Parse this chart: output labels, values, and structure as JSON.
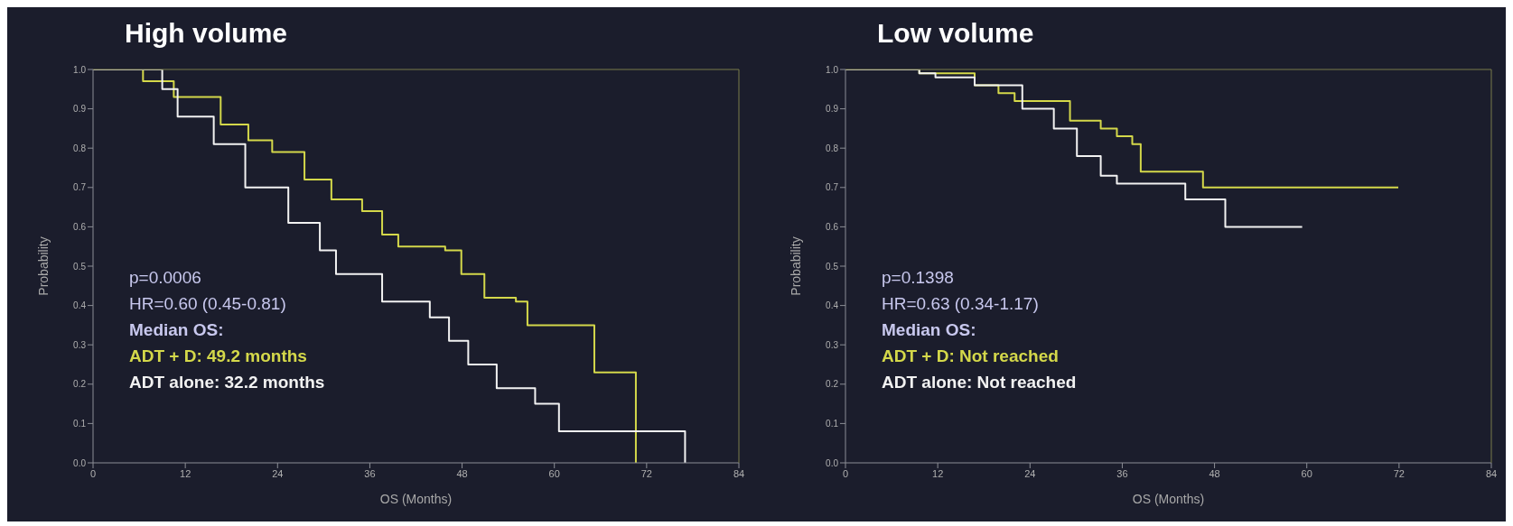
{
  "chart_data": [
    {
      "type": "step",
      "title": "High volume",
      "xlabel": "OS (Months)",
      "ylabel": "Probability",
      "series": [
        {
          "color": "#d4d84a",
          "x": [
            0,
            6.5,
            10.5,
            16.6,
            20.2,
            23.3,
            27.5,
            31,
            35,
            37.6,
            39.7,
            45.8,
            47.9,
            50.9,
            55,
            56.5,
            65.2,
            70.6
          ],
          "values": [
            1.0,
            0.97,
            0.93,
            0.86,
            0.82,
            0.79,
            0.72,
            0.67,
            0.64,
            0.58,
            0.55,
            0.54,
            0.48,
            0.42,
            0.41,
            0.35,
            0.23,
            0
          ]
        },
        {
          "color": "#f2f2f2",
          "x": [
            0,
            9,
            11,
            15.7,
            19.8,
            25.4,
            29.5,
            31.6,
            37.6,
            43.8,
            46.3,
            48.8,
            52.5,
            57.5,
            60.6,
            77
          ],
          "values": [
            1.0,
            0.95,
            0.88,
            0.81,
            0.7,
            0.61,
            0.54,
            0.48,
            0.41,
            0.37,
            0.31,
            0.25,
            0.19,
            0.15,
            0.08,
            0
          ]
        }
      ],
      "xlim": [
        0,
        84
      ],
      "xticks": [
        0,
        12,
        24,
        36,
        48,
        60,
        72,
        84
      ],
      "ylim": [
        0,
        1
      ],
      "yticks": [
        {
          "value": 0,
          "label": "0.0"
        },
        {
          "value": 0.1,
          "label": "0.1"
        },
        {
          "value": 0.2,
          "label": "0.2"
        },
        {
          "value": 0.3,
          "label": "0.3"
        },
        {
          "value": 0.4,
          "label": "0.4"
        },
        {
          "value": 0.5,
          "label": "0.5"
        },
        {
          "value": 0.6,
          "label": "0.6"
        },
        {
          "value": 0.7,
          "label": "0.7"
        },
        {
          "value": 0.8,
          "label": "0.8"
        },
        {
          "value": 0.9,
          "label": "0.9"
        },
        {
          "value": 1,
          "label": "1.0"
        }
      ],
      "annotations": [
        "p=0.0006",
        "HR=0.60 (0.45-0.81)",
        "Median OS:",
        "ADT + D: 49.2 months",
        "ADT alone: 32.2 months"
      ],
      "grid": false,
      "legend": false
    },
    {
      "type": "step",
      "title": "Low volume",
      "xlabel": "OS (Months)",
      "ylabel": "Probability",
      "series": [
        {
          "color": "#d4d84a",
          "x": [
            0,
            9.6,
            16.8,
            19.9,
            22,
            29.2,
            33.2,
            35.3,
            37.3,
            38.4,
            46.5,
            71.9
          ],
          "values": [
            1.0,
            0.99,
            0.96,
            0.94,
            0.92,
            0.87,
            0.85,
            0.83,
            0.81,
            0.74,
            0.7,
            0.7
          ]
        },
        {
          "color": "#f2f2f2",
          "x": [
            0,
            9.6,
            11.7,
            16.8,
            23,
            27.1,
            30.1,
            33.2,
            35.3,
            44.2,
            49.4,
            59.4
          ],
          "values": [
            1.0,
            0.99,
            0.98,
            0.96,
            0.9,
            0.85,
            0.78,
            0.73,
            0.71,
            0.67,
            0.6,
            0.6
          ]
        }
      ],
      "xlim": [
        0,
        84
      ],
      "xticks": [
        0,
        12,
        24,
        36,
        48,
        60,
        72,
        84
      ],
      "ylim": [
        0,
        1
      ],
      "yticks": [
        {
          "value": 0,
          "label": "0.0"
        },
        {
          "value": 0.1,
          "label": "0.1"
        },
        {
          "value": 0.2,
          "label": "0.2"
        },
        {
          "value": 0.3,
          "label": "0.3"
        },
        {
          "value": 0.4,
          "label": "0.4"
        },
        {
          "value": 0.5,
          "label": "0.5"
        },
        {
          "value": 0.6,
          "label": "0.6"
        },
        {
          "value": 0.7,
          "label": "0.7"
        },
        {
          "value": 0.8,
          "label": "0.8"
        },
        {
          "value": 0.9,
          "label": "0.9"
        },
        {
          "value": 1,
          "label": "1.0"
        }
      ],
      "annotations": [
        "p=0.1398",
        "HR=0.63 (0.34-1.17)",
        "Median OS:",
        "ADT + D: Not reached",
        "ADT alone: Not reached"
      ],
      "grid": false,
      "legend": false
    }
  ]
}
